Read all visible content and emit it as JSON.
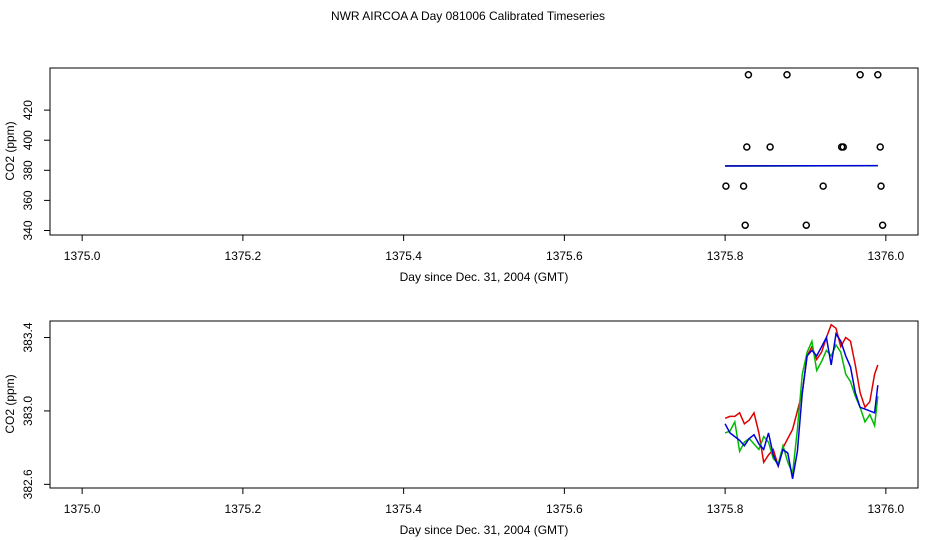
{
  "title": "NWR AIRCOA A  Day 081006  Calibrated Timeseries",
  "chart_data": [
    {
      "type": "scatter",
      "xlabel": "Day since Dec. 31, 2004 (GMT)",
      "ylabel": "CO2 (ppm)",
      "xlim": [
        1374.96,
        1376.04
      ],
      "ylim": [
        337.0,
        448.0
      ],
      "xticks": [
        "1375.0",
        "1375.2",
        "1375.4",
        "1375.6",
        "1375.8",
        "1376.0"
      ],
      "yticks": [
        "340",
        "360",
        "380",
        "400",
        "420"
      ],
      "grid": false,
      "legend": "none",
      "points": {
        "color": "#000000",
        "x": [
          1375.801,
          1375.823,
          1375.825,
          1375.827,
          1375.829,
          1375.856,
          1375.877,
          1375.901,
          1375.922,
          1375.945,
          1375.947,
          1375.968,
          1375.99,
          1375.993,
          1375.994,
          1375.996
        ],
        "y": [
          369.5,
          369.5,
          343.5,
          395.5,
          443.5,
          395.5,
          443.5,
          343.5,
          369.5,
          395.5,
          395.5,
          443.5,
          443.5,
          395.5,
          369.5,
          343.5
        ]
      },
      "series": [
        {
          "color": "#dd0000",
          "x": [
            1375.8,
            1375.99
          ],
          "y": [
            382.98,
            383.05
          ]
        },
        {
          "color": "#00bb00",
          "x": [
            1375.8,
            1375.99
          ],
          "y": [
            382.83,
            383.02
          ]
        },
        {
          "color": "#0000dd",
          "x": [
            1375.8,
            1375.99
          ],
          "y": [
            382.85,
            383.1
          ]
        }
      ]
    },
    {
      "type": "line",
      "xlabel": "Day since Dec. 31, 2004 (GMT)",
      "ylabel": "CO2 (ppm)",
      "xlim": [
        1374.96,
        1376.04
      ],
      "ylim": [
        382.58,
        383.49
      ],
      "xticks": [
        "1375.0",
        "1375.2",
        "1375.4",
        "1375.6",
        "1375.8",
        "1376.0"
      ],
      "yticks": [
        "382.6",
        "383.0",
        "383.4"
      ],
      "grid": false,
      "legend": "none",
      "x": [
        1375.8,
        1375.806,
        1375.812,
        1375.818,
        1375.824,
        1375.83,
        1375.836,
        1375.842,
        1375.848,
        1375.854,
        1375.86,
        1375.866,
        1375.872,
        1375.878,
        1375.884,
        1375.89,
        1375.896,
        1375.902,
        1375.908,
        1375.914,
        1375.92,
        1375.926,
        1375.932,
        1375.938,
        1375.944,
        1375.95,
        1375.956,
        1375.962,
        1375.968,
        1375.974,
        1375.98,
        1375.986,
        1375.99
      ],
      "series": [
        {
          "color": "#dd0000",
          "values": [
            382.96,
            382.97,
            382.97,
            382.99,
            382.93,
            382.95,
            382.99,
            382.88,
            382.72,
            382.76,
            382.79,
            382.7,
            382.8,
            382.85,
            382.9,
            383.0,
            383.1,
            383.3,
            383.35,
            383.28,
            383.32,
            383.4,
            383.47,
            383.45,
            383.35,
            383.4,
            383.38,
            383.25,
            383.1,
            383.02,
            383.05,
            383.2,
            383.25
          ]
        },
        {
          "color": "#00bb00",
          "values": [
            382.88,
            382.89,
            382.94,
            382.78,
            382.83,
            382.85,
            382.82,
            382.79,
            382.86,
            382.83,
            382.74,
            382.71,
            382.81,
            382.72,
            382.66,
            382.9,
            383.2,
            383.32,
            383.38,
            383.22,
            383.27,
            383.33,
            383.3,
            383.36,
            383.32,
            383.2,
            383.16,
            383.08,
            383.02,
            382.94,
            382.98,
            382.92,
            383.08
          ]
        },
        {
          "color": "#0000dd",
          "values": [
            382.93,
            382.88,
            382.86,
            382.84,
            382.81,
            382.85,
            382.87,
            382.82,
            382.79,
            382.88,
            382.76,
            382.7,
            382.79,
            382.77,
            382.63,
            382.78,
            383.1,
            383.3,
            383.33,
            383.3,
            383.35,
            383.4,
            383.25,
            383.42,
            383.38,
            383.3,
            383.24,
            383.1,
            383.02,
            383.01,
            383.0,
            382.99,
            383.14
          ]
        }
      ]
    }
  ]
}
